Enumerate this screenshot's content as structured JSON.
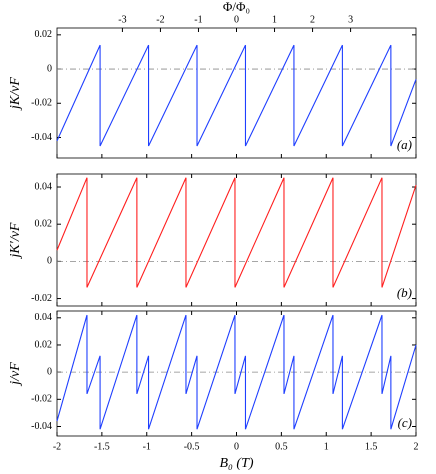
{
  "chart_data": [
    {
      "type": "line",
      "ylabel": "jK/vF",
      "annotation": "(a)",
      "x2label": "Φ/Φ₀",
      "x2lim": [
        -4.72,
        4.72
      ],
      "x2ticks": [
        -3,
        -2,
        -1,
        0,
        1,
        2,
        3
      ],
      "xlim": [
        -2,
        2
      ],
      "xticks": [
        -2,
        -1.5,
        -1,
        -0.5,
        0,
        0.5,
        1,
        1.5,
        2
      ],
      "ylim": [
        -0.052,
        0.024
      ],
      "yticks": [
        0.02,
        0,
        -0.02,
        -0.04
      ],
      "hline": 0,
      "color": "#1f3fff",
      "x": [
        -2,
        -1.52,
        -1.52,
        -0.98,
        -0.98,
        -0.44,
        -0.44,
        0.1,
        0.1,
        0.64,
        0.64,
        1.18,
        1.18,
        1.72,
        1.72,
        2
      ],
      "values": [
        -0.042,
        0.014,
        -0.045,
        0.014,
        -0.045,
        0.014,
        -0.045,
        0.014,
        -0.045,
        0.014,
        -0.045,
        0.014,
        -0.045,
        0.014,
        -0.045,
        -0.006
      ]
    },
    {
      "type": "line",
      "ylabel": "jK′/vF",
      "annotation": "(b)",
      "xlim": [
        -2,
        2
      ],
      "xticks": [
        -2,
        -1.5,
        -1,
        -0.5,
        0,
        0.5,
        1,
        1.5,
        2
      ],
      "ylim": [
        -0.024,
        0.047
      ],
      "yticks": [
        0.04,
        0.02,
        0,
        -0.02
      ],
      "hline": 0,
      "color": "#ff1f1f",
      "x": [
        -2,
        -1.666,
        -1.666,
        -1.11,
        -1.11,
        -0.563,
        -0.563,
        -0.017,
        -0.017,
        0.529,
        0.529,
        1.075,
        1.075,
        1.621,
        1.621,
        2
      ],
      "values": [
        0.006,
        0.045,
        -0.014,
        0.045,
        -0.014,
        0.045,
        -0.014,
        0.045,
        -0.014,
        0.045,
        -0.014,
        0.045,
        -0.014,
        0.045,
        -0.014,
        0.041
      ]
    },
    {
      "type": "line",
      "ylabel": "j/vF",
      "annotation": "(c)",
      "xlabel": "B₀ (T)",
      "xlim": [
        -2,
        2
      ],
      "xticks": [
        -2,
        -1.5,
        -1,
        -0.5,
        0,
        0.5,
        1,
        1.5,
        2
      ],
      "ylim": [
        -0.047,
        0.045
      ],
      "yticks": [
        0.04,
        0.02,
        0,
        -0.02,
        -0.04
      ],
      "hline": 0,
      "color": "#1f3fff",
      "x": [
        -2,
        -1.666,
        -1.666,
        -1.52,
        -1.52,
        -1.11,
        -1.11,
        -0.98,
        -0.98,
        -0.563,
        -0.563,
        -0.44,
        -0.44,
        -0.017,
        -0.017,
        0.1,
        0.1,
        0.529,
        0.529,
        0.64,
        0.64,
        1.075,
        1.075,
        1.18,
        1.18,
        1.621,
        1.621,
        1.72,
        1.72,
        2
      ],
      "values": [
        -0.036,
        0.042,
        -0.016,
        0.012,
        -0.042,
        0.042,
        -0.016,
        0.012,
        -0.042,
        0.042,
        -0.016,
        0.012,
        -0.042,
        0.042,
        -0.016,
        0.012,
        -0.042,
        0.042,
        -0.016,
        0.012,
        -0.042,
        0.042,
        -0.016,
        0.012,
        -0.042,
        0.042,
        -0.016,
        0.012,
        -0.042,
        0.02
      ]
    }
  ]
}
